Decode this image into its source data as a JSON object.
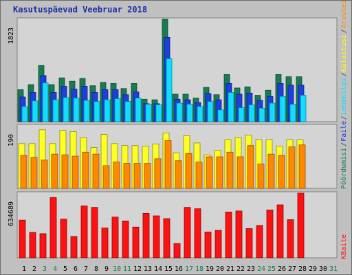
{
  "chart_data": {
    "type": "bar",
    "title": "Kasutuspäevad Veebruar 2018",
    "categories": [
      "1",
      "2",
      "3",
      "4",
      "5",
      "6",
      "7",
      "8",
      "9",
      "10",
      "11",
      "12",
      "13",
      "14",
      "15",
      "16",
      "17",
      "18",
      "19",
      "20",
      "21",
      "22",
      "23",
      "24",
      "25",
      "26",
      "27",
      "28",
      "29",
      "30",
      "31"
    ],
    "weekend_days": [
      "3",
      "4",
      "10",
      "11",
      "17",
      "18",
      "24",
      "25",
      "31"
    ],
    "colors": {
      "green": "#1a7a52",
      "blue": "#1d3fdc",
      "cyan": "#11ddff",
      "yellow": "#ffff22",
      "orange": "#ff8800",
      "red": "#ff1111",
      "weekday_label": "#000000",
      "weekend_label": "#1a7a52"
    },
    "panels": [
      {
        "id": "visits-pages-hits",
        "ymax": 1823,
        "max_label": "1823",
        "series": [
          {
            "name": "Pöördumisi",
            "color": "#1a7a52",
            "values": [
              570,
              660,
              1000,
              660,
              780,
              720,
              770,
              640,
              700,
              680,
              590,
              680,
              400,
              390,
              1823,
              490,
              490,
              420,
              610,
              480,
              840,
              600,
              620,
              470,
              560,
              840,
              800,
              800
            ]
          },
          {
            "name": "Faile",
            "color": "#1d3fdc",
            "values": [
              440,
              520,
              820,
              520,
              630,
              580,
              630,
              520,
              570,
              570,
              480,
              530,
              320,
              320,
              1500,
              400,
              390,
              340,
              500,
              390,
              680,
              490,
              510,
              380,
              450,
              680,
              650,
              650
            ]
          },
          {
            "name": "Lehekülgi",
            "color": "#11ddff",
            "values": [
              270,
              370,
              690,
              390,
              430,
              420,
              380,
              360,
              390,
              410,
              360,
              420,
              310,
              300,
              1120,
              330,
              310,
              270,
              360,
              210,
              520,
              250,
              300,
              240,
              330,
              450,
              310,
              470
            ]
          }
        ]
      },
      {
        "id": "visits-hosts",
        "ymax": 190,
        "max_label": "190",
        "series": [
          {
            "name": "Külastusi",
            "color": "#ffff22",
            "values": [
              136,
              136,
              178,
              136,
              176,
              172,
              154,
              124,
              164,
              136,
              130,
              130,
              128,
              135,
              168,
              108,
              160,
              138,
              102,
              116,
              148,
              154,
              162,
              148,
              148,
              128,
              148,
              148
            ]
          },
          {
            "name": "Arvuteid",
            "color": "#ff8800",
            "values": [
              100,
              94,
              86,
              104,
              102,
              98,
              110,
              104,
              69,
              80,
              76,
              76,
              76,
              90,
              145,
              84,
              106,
              80,
              96,
              96,
              110,
              96,
              130,
              74,
              104,
              100,
              126,
              132
            ]
          }
        ]
      },
      {
        "id": "kbytes",
        "ymax": 634689,
        "max_label": "634689",
        "series": [
          {
            "name": "KBaite",
            "color": "#ff1111",
            "values": [
              370000,
              250000,
              237000,
              592000,
              380000,
              210000,
              510000,
              495000,
              293000,
              400000,
              362000,
              302000,
              436000,
              412000,
              385000,
              140000,
              495000,
              482000,
              254000,
              270000,
              450000,
              460000,
              287000,
              318000,
              470000,
              520000,
              375000,
              634689
            ]
          }
        ]
      }
    ],
    "legend_right": {
      "top": [
        {
          "text": "Pöördumisi",
          "color": "#1a7a52"
        },
        {
          "text": "/",
          "color": "#404040"
        },
        {
          "text": "Faile",
          "color": "#1d3fdc"
        },
        {
          "text": "/",
          "color": "#404040"
        },
        {
          "text": "Lehekülgi",
          "color": "#11ddff"
        },
        {
          "text": "/",
          "color": "#404040"
        },
        {
          "text": "Külastusi",
          "color": "#ffff22"
        },
        {
          "text": "/",
          "color": "#404040"
        },
        {
          "text": "Arvuteid",
          "color": "#ff8800"
        }
      ],
      "bottom": [
        {
          "text": "KBaite",
          "color": "#ff1111"
        }
      ]
    }
  }
}
